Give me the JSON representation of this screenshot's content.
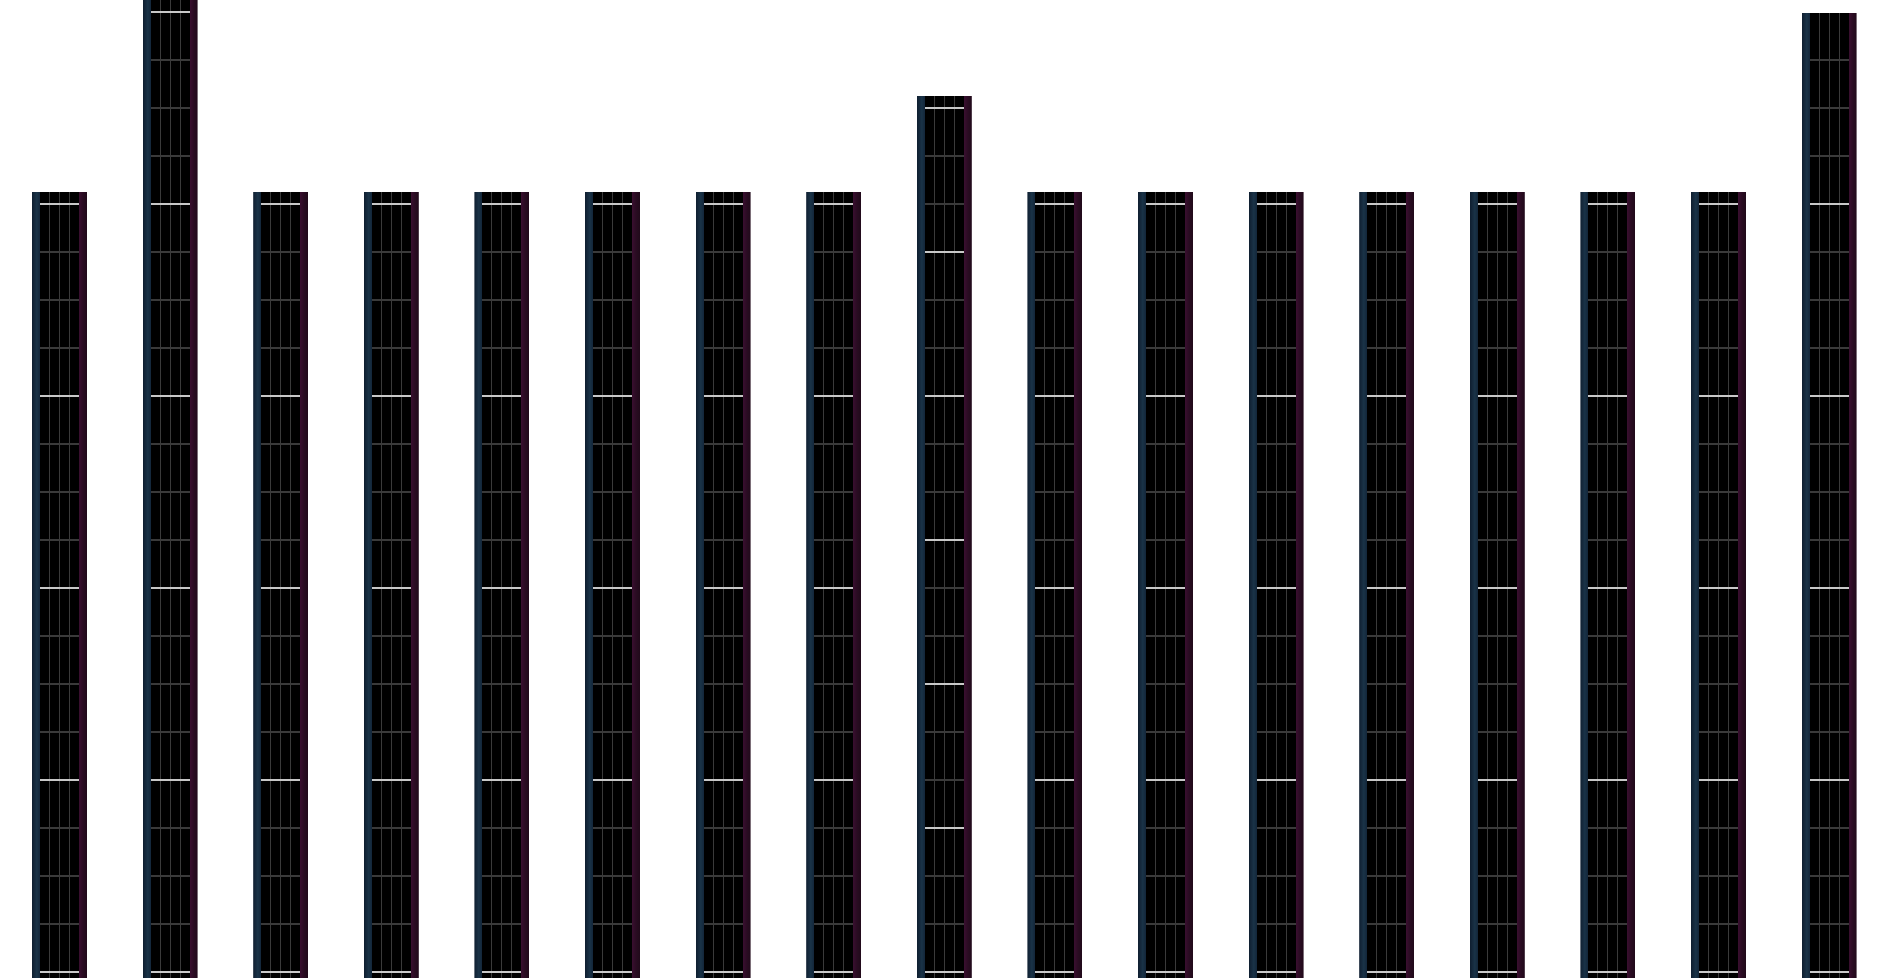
{
  "colors": {
    "background": "#ffffff",
    "bar_fill": "#000000",
    "left_edge": "#1a3347",
    "right_edge": "#2a0c22",
    "grid_line": "#3a3a3a",
    "major_line": "#c8c8c8"
  },
  "bars": [
    {
      "variant": "normal"
    },
    {
      "variant": "tall"
    },
    {
      "variant": "normal"
    },
    {
      "variant": "normal"
    },
    {
      "variant": "normal"
    },
    {
      "variant": "normal"
    },
    {
      "variant": "normal"
    },
    {
      "variant": "normal"
    },
    {
      "variant": "mid"
    },
    {
      "variant": "normal"
    },
    {
      "variant": "normal"
    },
    {
      "variant": "normal"
    },
    {
      "variant": "normal"
    },
    {
      "variant": "normal"
    },
    {
      "variant": "normal"
    },
    {
      "variant": "normal"
    },
    {
      "variant": "tall-right"
    }
  ]
}
